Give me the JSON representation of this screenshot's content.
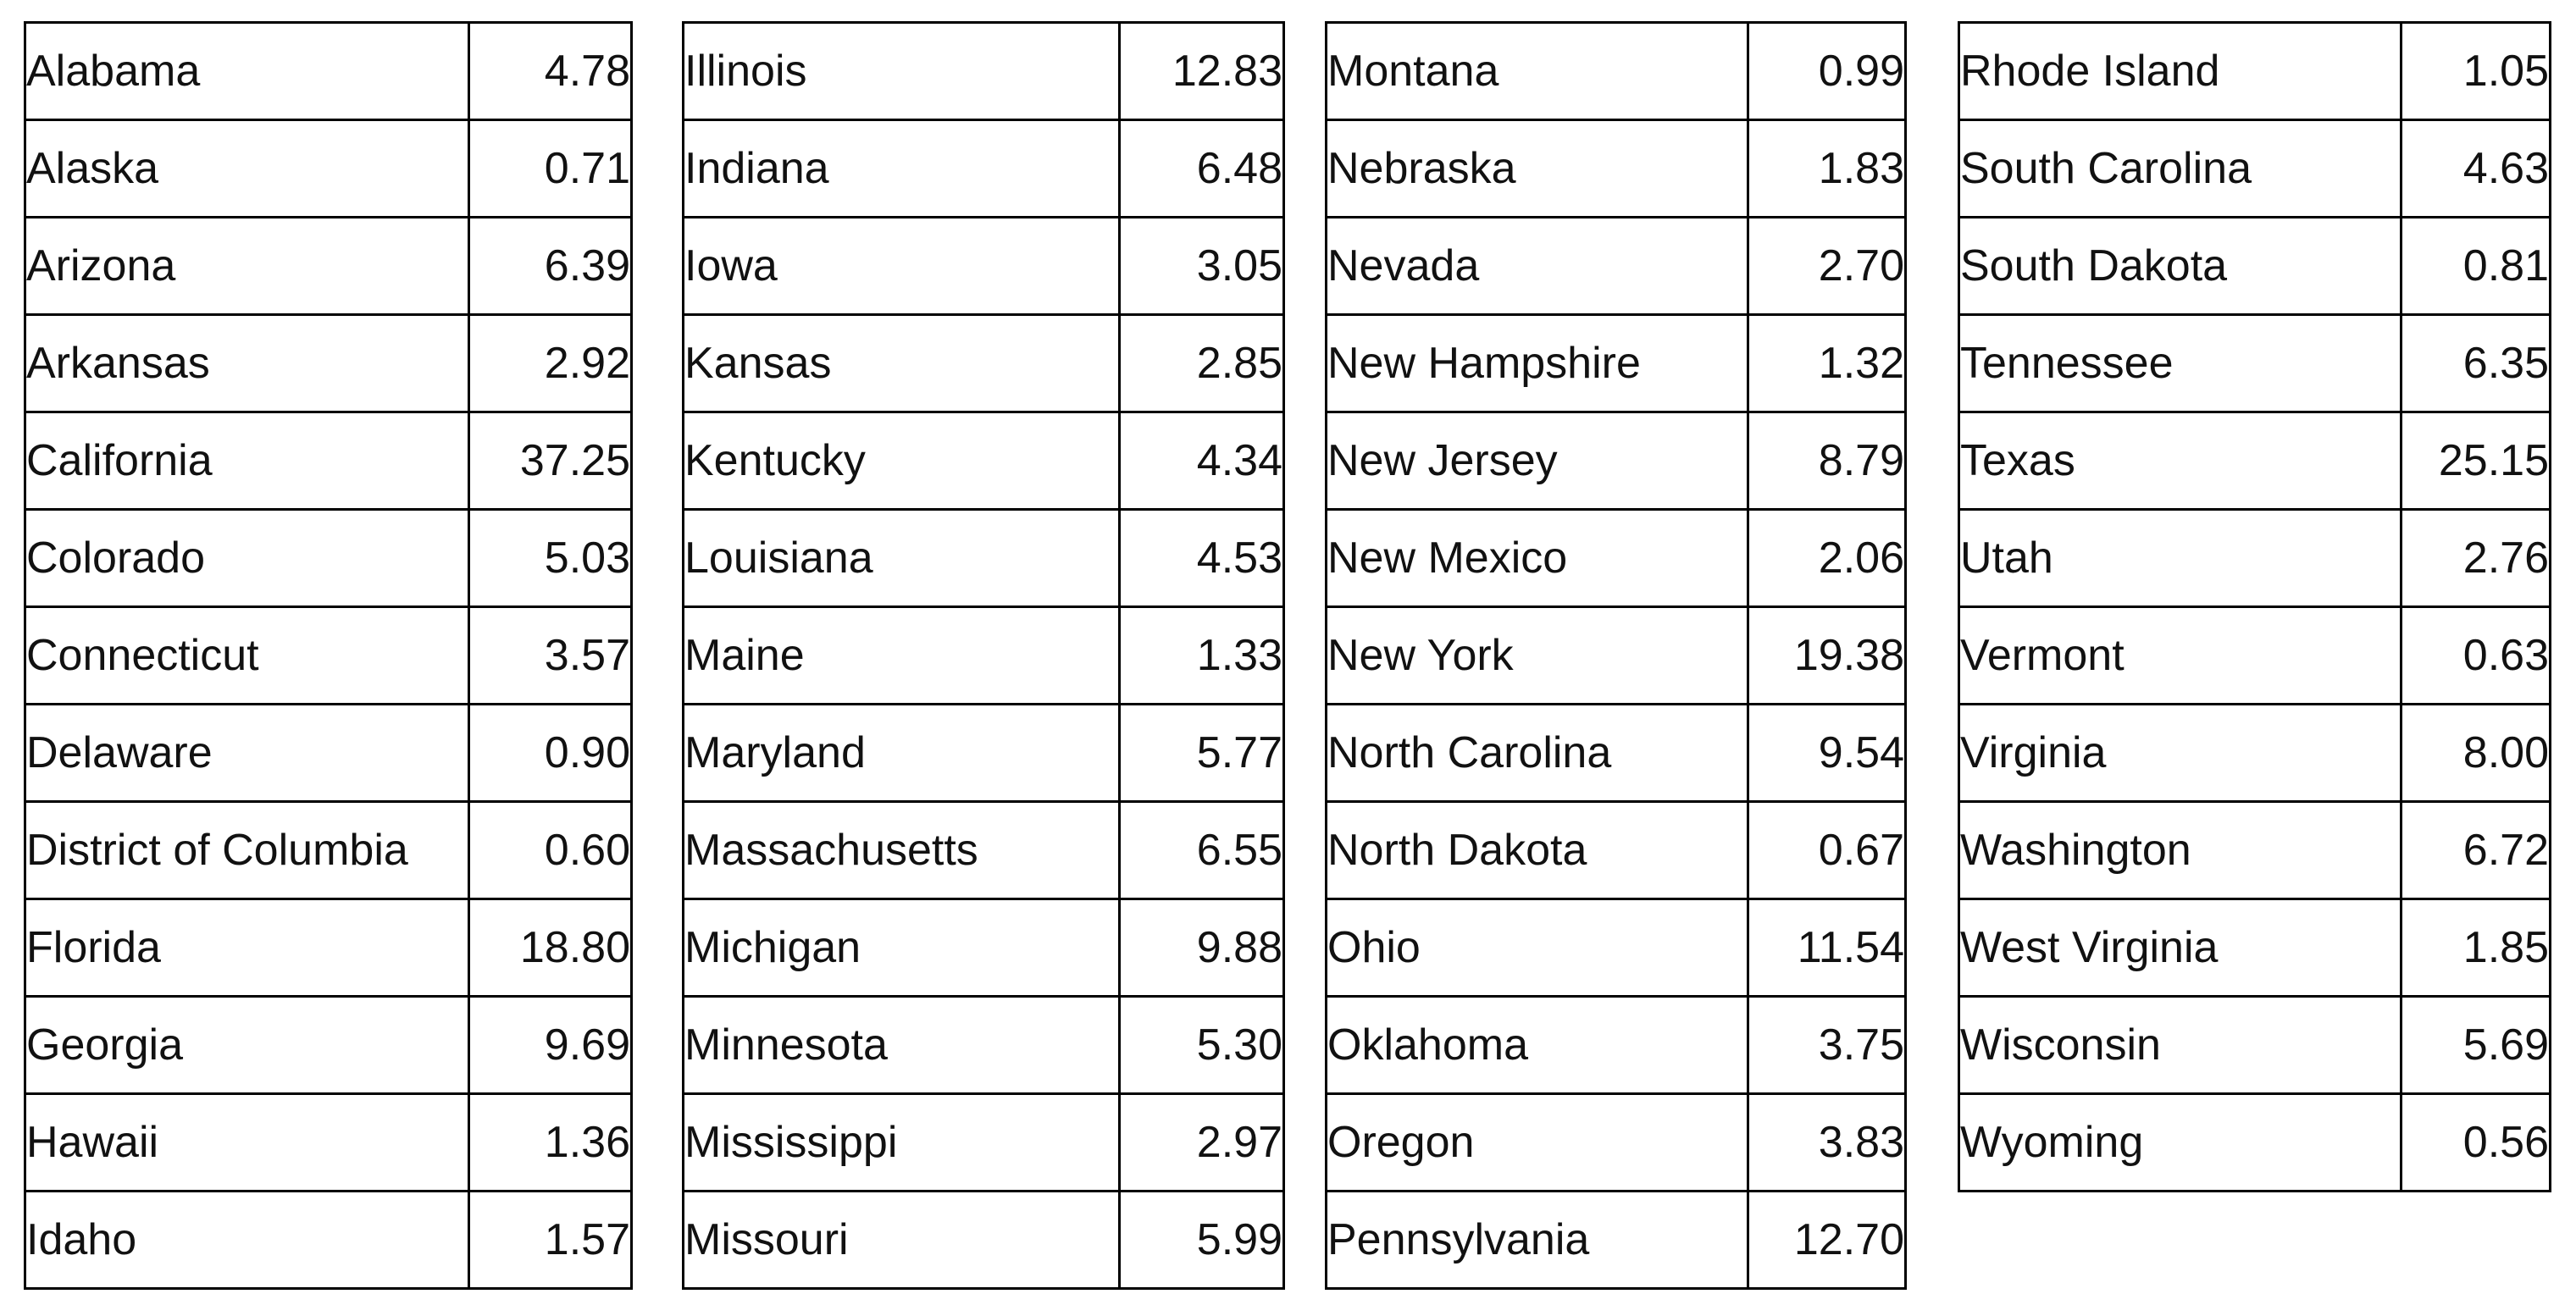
{
  "page": {
    "background": "#ffffff",
    "border_color": "#000000",
    "text_color": "#111111"
  },
  "chart_data": {
    "type": "table",
    "title": "",
    "layout": "four side-by-side two-column tables, no headers, values right-aligned",
    "tables": [
      {
        "rows": [
          [
            "Alabama",
            "4.78"
          ],
          [
            "Alaska",
            "0.71"
          ],
          [
            "Arizona",
            "6.39"
          ],
          [
            "Arkansas",
            "2.92"
          ],
          [
            "California",
            "37.25"
          ],
          [
            "Colorado",
            "5.03"
          ],
          [
            "Connecticut",
            "3.57"
          ],
          [
            "Delaware",
            "0.90"
          ],
          [
            "District of Columbia",
            "0.60"
          ],
          [
            "Florida",
            "18.80"
          ],
          [
            "Georgia",
            "9.69"
          ],
          [
            "Hawaii",
            "1.36"
          ],
          [
            "Idaho",
            "1.57"
          ]
        ]
      },
      {
        "rows": [
          [
            "Illinois",
            "12.83"
          ],
          [
            "Indiana",
            "6.48"
          ],
          [
            "Iowa",
            "3.05"
          ],
          [
            "Kansas",
            "2.85"
          ],
          [
            "Kentucky",
            "4.34"
          ],
          [
            "Louisiana",
            "4.53"
          ],
          [
            "Maine",
            "1.33"
          ],
          [
            "Maryland",
            "5.77"
          ],
          [
            "Massachusetts",
            "6.55"
          ],
          [
            "Michigan",
            "9.88"
          ],
          [
            "Minnesota",
            "5.30"
          ],
          [
            "Mississippi",
            "2.97"
          ],
          [
            "Missouri",
            "5.99"
          ]
        ]
      },
      {
        "rows": [
          [
            "Montana",
            "0.99"
          ],
          [
            "Nebraska",
            "1.83"
          ],
          [
            "Nevada",
            "2.70"
          ],
          [
            "New Hampshire",
            "1.32"
          ],
          [
            "New Jersey",
            "8.79"
          ],
          [
            "New Mexico",
            "2.06"
          ],
          [
            "New York",
            "19.38"
          ],
          [
            "North Carolina",
            "9.54"
          ],
          [
            "North Dakota",
            "0.67"
          ],
          [
            "Ohio",
            "11.54"
          ],
          [
            "Oklahoma",
            "3.75"
          ],
          [
            "Oregon",
            "3.83"
          ],
          [
            "Pennsylvania",
            "12.70"
          ]
        ]
      },
      {
        "rows": [
          [
            "Rhode Island",
            "1.05"
          ],
          [
            "South Carolina",
            "4.63"
          ],
          [
            "South Dakota",
            "0.81"
          ],
          [
            "Tennessee",
            "6.35"
          ],
          [
            "Texas",
            "25.15"
          ],
          [
            "Utah",
            "2.76"
          ],
          [
            "Vermont",
            "0.63"
          ],
          [
            "Virginia",
            "8.00"
          ],
          [
            "Washington",
            "6.72"
          ],
          [
            "West Virginia",
            "1.85"
          ],
          [
            "Wisconsin",
            "5.69"
          ],
          [
            "Wyoming",
            "0.56"
          ]
        ]
      }
    ]
  }
}
